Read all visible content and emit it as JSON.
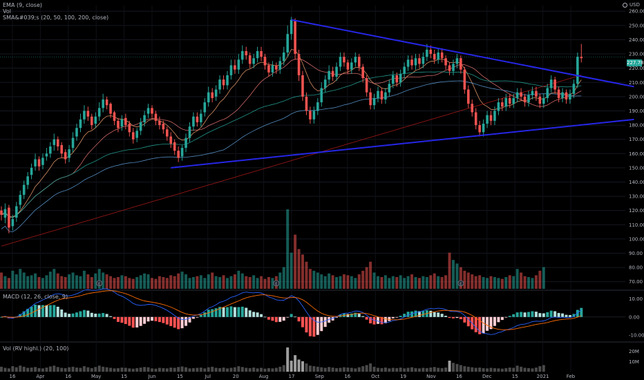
{
  "legend": {
    "ema": "EMA (9, close)",
    "vol": "Vol",
    "sma": "SMA&#039;s (20, 50, 100, 200, close)",
    "macd": "MACD (12, 26, close, 9)",
    "rvol": "Vol (RV highl.) (20, 100)"
  },
  "currency": "USD",
  "last_price": "227.78",
  "icons": {
    "settings": "globe-icon",
    "earnings": "earnings-marker-icon"
  },
  "colors": {
    "up": "#26a69a",
    "down": "#ef5350",
    "trendline": "#2626e8",
    "sma20": "#e57373",
    "sma50": "#26a69a",
    "sma100": "#5c9bd6",
    "sma200": "#b71c1c",
    "ema9": "#f0a070",
    "macd": "#2962ff",
    "signal": "#ff6d00"
  },
  "chart_data": [
    {
      "type": "candlestick",
      "pane": "price",
      "x_ticks": [
        "16",
        "Apr",
        "16",
        "May",
        "15",
        "Jun",
        "15",
        "Jul",
        "20",
        "Aug",
        "17",
        "Sep",
        "16",
        "Oct",
        "19",
        "Nov",
        "16",
        "Dec",
        "15",
        "2021",
        "Feb"
      ],
      "y_ticks": [
        260,
        250,
        240,
        230,
        220,
        210,
        200,
        190,
        180,
        170,
        160,
        150,
        140,
        130,
        120,
        110,
        100,
        90,
        80,
        70
      ],
      "ylim": [
        65,
        264
      ],
      "last_price": 227.78,
      "candles": [
        [
          120,
          117,
          123,
          113
        ],
        [
          115,
          121,
          125,
          111
        ],
        [
          122,
          108,
          124,
          104
        ],
        [
          109,
          114,
          117,
          106
        ],
        [
          115,
          123,
          126,
          112
        ],
        [
          124,
          131,
          134,
          121
        ],
        [
          131,
          138,
          141,
          128
        ],
        [
          138,
          144,
          147,
          135
        ],
        [
          145,
          150,
          153,
          142
        ],
        [
          151,
          156,
          160,
          148
        ],
        [
          156,
          151,
          158,
          148
        ],
        [
          152,
          157,
          160,
          149
        ],
        [
          158,
          160,
          164,
          155
        ],
        [
          160,
          165,
          168,
          157
        ],
        [
          166,
          170,
          174,
          162
        ],
        [
          170,
          165,
          172,
          162
        ],
        [
          166,
          160,
          168,
          157
        ],
        [
          161,
          156,
          163,
          153
        ],
        [
          157,
          163,
          166,
          154
        ],
        [
          164,
          171,
          175,
          161
        ],
        [
          172,
          178,
          181,
          169
        ],
        [
          178,
          184,
          188,
          175
        ],
        [
          184,
          190,
          194,
          181
        ],
        [
          190,
          186,
          193,
          183
        ],
        [
          186,
          180,
          188,
          177
        ],
        [
          181,
          186,
          189,
          178
        ],
        [
          186,
          192,
          196,
          183
        ],
        [
          192,
          198,
          202,
          189
        ],
        [
          198,
          194,
          200,
          191
        ],
        [
          195,
          188,
          196,
          185
        ],
        [
          189,
          183,
          190,
          180
        ],
        [
          183,
          178,
          185,
          175
        ],
        [
          179,
          184,
          187,
          176
        ],
        [
          185,
          180,
          188,
          177
        ],
        [
          181,
          175,
          183,
          172
        ],
        [
          175,
          170,
          178,
          167
        ],
        [
          171,
          176,
          178,
          168
        ],
        [
          176,
          182,
          185,
          173
        ],
        [
          182,
          187,
          190,
          179
        ],
        [
          188,
          192,
          195,
          185
        ],
        [
          192,
          188,
          194,
          185
        ],
        [
          188,
          183,
          190,
          180
        ],
        [
          183,
          180,
          186,
          177
        ],
        [
          181,
          177,
          183,
          174
        ],
        [
          177,
          172,
          179,
          169
        ],
        [
          172,
          167,
          175,
          164
        ],
        [
          168,
          162,
          170,
          159
        ],
        [
          162,
          157,
          165,
          154
        ],
        [
          158,
          164,
          166,
          155
        ],
        [
          164,
          171,
          174,
          161
        ],
        [
          171,
          179,
          182,
          168
        ],
        [
          179,
          186,
          189,
          176
        ],
        [
          186,
          182,
          189,
          179
        ],
        [
          182,
          188,
          191,
          179
        ],
        [
          189,
          196,
          199,
          186
        ],
        [
          196,
          203,
          207,
          193
        ],
        [
          203,
          199,
          206,
          196
        ],
        [
          200,
          205,
          208,
          197
        ],
        [
          205,
          212,
          215,
          202
        ],
        [
          212,
          208,
          215,
          205
        ],
        [
          208,
          215,
          218,
          205
        ],
        [
          215,
          222,
          226,
          212
        ],
        [
          222,
          219,
          226,
          216
        ],
        [
          219,
          226,
          230,
          216
        ],
        [
          226,
          232,
          236,
          223
        ],
        [
          232,
          229,
          235,
          226
        ],
        [
          229,
          223,
          231,
          220
        ],
        [
          223,
          227,
          230,
          220
        ],
        [
          227,
          232,
          235,
          224
        ],
        [
          232,
          228,
          235,
          225
        ],
        [
          228,
          222,
          230,
          219
        ],
        [
          222,
          217,
          224,
          214
        ],
        [
          217,
          222,
          225,
          214
        ],
        [
          222,
          219,
          224,
          216
        ],
        [
          219,
          225,
          228,
          216
        ],
        [
          225,
          231,
          235,
          222
        ],
        [
          231,
          244,
          250,
          228
        ],
        [
          244,
          254,
          256,
          240
        ],
        [
          253,
          230,
          255,
          226
        ],
        [
          230,
          215,
          233,
          211
        ],
        [
          215,
          200,
          218,
          197
        ],
        [
          200,
          190,
          203,
          187
        ],
        [
          190,
          184,
          193,
          181
        ],
        [
          184,
          190,
          193,
          181
        ],
        [
          190,
          196,
          199,
          187
        ],
        [
          196,
          206,
          210,
          193
        ],
        [
          206,
          212,
          215,
          203
        ],
        [
          212,
          218,
          222,
          209
        ],
        [
          218,
          214,
          221,
          211
        ],
        [
          214,
          221,
          224,
          211
        ],
        [
          221,
          228,
          231,
          218
        ],
        [
          228,
          224,
          231,
          221
        ],
        [
          224,
          219,
          226,
          216
        ],
        [
          219,
          224,
          227,
          216
        ],
        [
          224,
          228,
          231,
          221
        ],
        [
          228,
          221,
          230,
          218
        ],
        [
          221,
          213,
          223,
          210
        ],
        [
          213,
          203,
          215,
          200
        ],
        [
          203,
          194,
          206,
          191
        ],
        [
          194,
          199,
          202,
          191
        ],
        [
          199,
          204,
          207,
          196
        ],
        [
          204,
          198,
          206,
          195
        ],
        [
          198,
          203,
          206,
          195
        ],
        [
          203,
          209,
          212,
          200
        ],
        [
          209,
          215,
          218,
          206
        ],
        [
          215,
          210,
          217,
          207
        ],
        [
          210,
          216,
          219,
          207
        ],
        [
          216,
          221,
          224,
          213
        ],
        [
          221,
          226,
          229,
          218
        ],
        [
          226,
          222,
          229,
          219
        ],
        [
          222,
          227,
          230,
          219
        ],
        [
          227,
          223,
          230,
          220
        ],
        [
          223,
          228,
          231,
          220
        ],
        [
          228,
          233,
          237,
          225
        ],
        [
          233,
          230,
          236,
          227
        ],
        [
          230,
          226,
          233,
          223
        ],
        [
          226,
          231,
          234,
          223
        ],
        [
          231,
          227,
          234,
          224
        ],
        [
          227,
          222,
          229,
          219
        ],
        [
          222,
          218,
          224,
          215
        ],
        [
          218,
          223,
          226,
          215
        ],
        [
          223,
          227,
          230,
          220
        ],
        [
          227,
          219,
          229,
          216
        ],
        [
          219,
          205,
          221,
          202
        ],
        [
          205,
          195,
          208,
          192
        ],
        [
          195,
          189,
          198,
          186
        ],
        [
          189,
          180,
          192,
          177
        ],
        [
          180,
          175,
          183,
          172
        ],
        [
          175,
          181,
          184,
          172
        ],
        [
          181,
          187,
          190,
          178
        ],
        [
          187,
          183,
          190,
          180
        ],
        [
          183,
          190,
          193,
          180
        ],
        [
          190,
          196,
          199,
          187
        ],
        [
          196,
          193,
          199,
          190
        ],
        [
          193,
          199,
          202,
          190
        ],
        [
          199,
          195,
          202,
          192
        ],
        [
          195,
          199,
          202,
          192
        ],
        [
          199,
          203,
          206,
          196
        ],
        [
          203,
          200,
          206,
          197
        ],
        [
          200,
          196,
          202,
          193
        ],
        [
          196,
          201,
          204,
          193
        ],
        [
          201,
          204,
          207,
          198
        ],
        [
          204,
          200,
          207,
          197
        ],
        [
          200,
          195,
          202,
          192
        ],
        [
          195,
          199,
          202,
          192
        ],
        [
          199,
          206,
          209,
          196
        ],
        [
          206,
          212,
          215,
          203
        ],
        [
          212,
          205,
          214,
          202
        ],
        [
          205,
          199,
          207,
          196
        ],
        [
          199,
          203,
          206,
          196
        ],
        [
          203,
          198,
          205,
          195
        ],
        [
          198,
          202,
          205,
          195
        ],
        [
          202,
          209,
          212,
          199
        ],
        [
          209,
          228,
          231,
          206
        ],
        [
          228,
          227,
          237,
          224
        ]
      ],
      "moving_averages": [
        {
          "name": "EMA 9",
          "period": 9
        },
        {
          "name": "SMA 20",
          "period": 20
        },
        {
          "name": "SMA 50",
          "period": 50
        },
        {
          "name": "SMA 100",
          "period": 100
        },
        {
          "name": "SMA 200",
          "period": 200
        }
      ],
      "trendlines": [
        {
          "from": [
            77,
            254
          ],
          "to": [
            168,
            207
          ]
        },
        {
          "from": [
            45,
            150
          ],
          "to": [
            168,
            184
          ]
        }
      ],
      "earnings_markers": [
        26,
        73,
        122
      ],
      "volume": [
        18,
        14,
        12,
        20,
        16,
        22,
        18,
        14,
        15,
        17,
        13,
        12,
        15,
        19,
        22,
        17,
        14,
        13,
        16,
        18,
        15,
        14,
        20,
        16,
        13,
        17,
        22,
        18,
        16,
        14,
        12,
        13,
        15,
        14,
        12,
        11,
        13,
        15,
        17,
        16,
        12,
        11,
        14,
        13,
        12,
        15,
        14,
        17,
        19,
        16,
        12,
        13,
        14,
        15,
        12,
        16,
        18,
        14,
        13,
        15,
        12,
        14,
        16,
        20,
        17,
        14,
        13,
        15,
        12,
        14,
        11,
        13,
        12,
        14,
        18,
        24,
        88,
        40,
        60,
        44,
        38,
        30,
        22,
        20,
        18,
        16,
        14,
        17,
        15,
        13,
        14,
        16,
        15,
        14,
        12,
        16,
        20,
        24,
        30,
        18,
        14,
        13,
        15,
        12,
        14,
        13,
        15,
        12,
        14,
        16,
        13,
        12,
        14,
        13,
        15,
        17,
        14,
        13,
        15,
        40,
        32,
        28,
        24,
        20,
        18,
        16,
        14,
        15,
        13,
        12,
        14,
        13,
        12,
        11,
        13,
        15,
        14,
        22,
        18,
        14,
        13,
        12,
        15,
        20,
        24
      ],
      "volume_ticks": []
    },
    {
      "type": "macd",
      "pane": "macd",
      "y_ticks": [
        "10.00",
        "0.00",
        "-10.00"
      ],
      "ylim": [
        -13,
        14
      ]
    },
    {
      "type": "bar",
      "pane": "relative-volume",
      "y_ticks": [
        "20M",
        "10M"
      ],
      "ylim": [
        0,
        28
      ]
    }
  ]
}
